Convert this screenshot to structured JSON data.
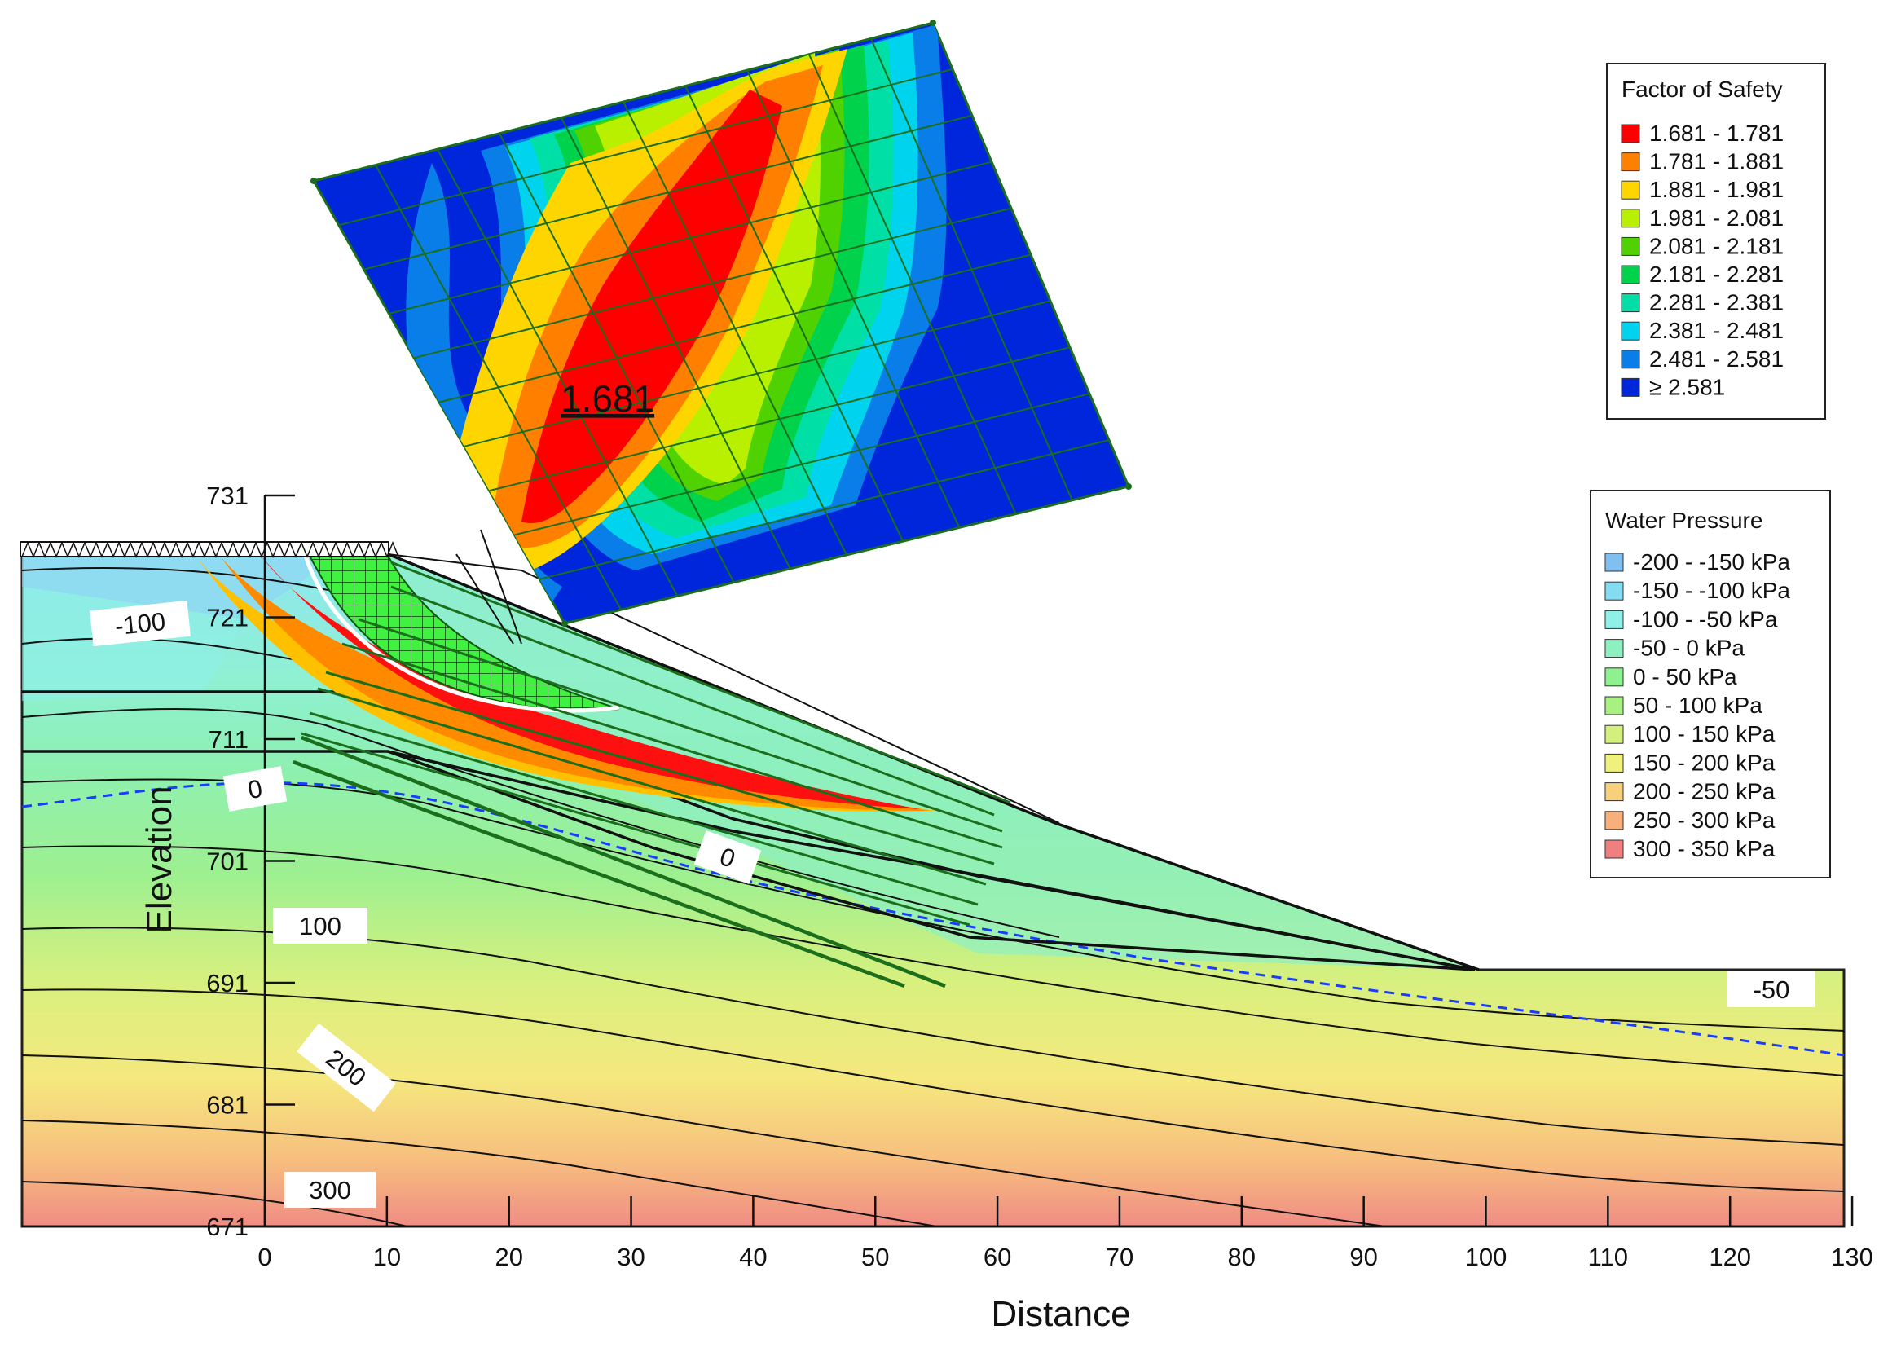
{
  "axes": {
    "x_title": "Distance",
    "y_title": "Elevation",
    "x_ticks": [
      "0",
      "10",
      "20",
      "30",
      "40",
      "50",
      "60",
      "70",
      "80",
      "90",
      "100",
      "110",
      "120",
      "130"
    ],
    "y_ticks": [
      "731",
      "721",
      "711",
      "701",
      "691",
      "681",
      "671"
    ]
  },
  "fos_legend": {
    "title": "Factor of Safety",
    "items": [
      {
        "label": "1.681 - 1.781",
        "color": "#ff0000"
      },
      {
        "label": "1.781 - 1.881",
        "color": "#ff7f00"
      },
      {
        "label": "1.881 - 1.981",
        "color": "#ffd500"
      },
      {
        "label": "1.981 - 2.081",
        "color": "#b9f000"
      },
      {
        "label": "2.081 - 2.181",
        "color": "#4fd200"
      },
      {
        "label": "2.181 - 2.281",
        "color": "#00d24c"
      },
      {
        "label": "2.281 - 2.381",
        "color": "#00e0a6"
      },
      {
        "label": "2.381 - 2.481",
        "color": "#00d3ee"
      },
      {
        "label": "2.481 - 2.581",
        "color": "#0a7ee8"
      },
      {
        "label": "≥ 2.581",
        "color": "#0026dc"
      }
    ]
  },
  "water_legend": {
    "title": "Water Pressure",
    "items": [
      {
        "label": "-200 - -150 kPa",
        "color": "#7fc0f0"
      },
      {
        "label": "-150 - -100 kPa",
        "color": "#83dcf2"
      },
      {
        "label": "-100 - -50 kPa",
        "color": "#8ef0e6"
      },
      {
        "label": "-50 - 0 kPa",
        "color": "#8ef0c0"
      },
      {
        "label": "0 - 50 kPa",
        "color": "#8ef08e"
      },
      {
        "label": "50 - 100 kPa",
        "color": "#a8f080"
      },
      {
        "label": "100 - 150 kPa",
        "color": "#d4f07c"
      },
      {
        "label": "150 - 200 kPa",
        "color": "#f0f07c"
      },
      {
        "label": "200 - 250 kPa",
        "color": "#f7d07c"
      },
      {
        "label": "250 - 300 kPa",
        "color": "#f7b07c"
      },
      {
        "label": "300 - 350 kPa",
        "color": "#f08080"
      }
    ]
  },
  "contour_labels": [
    "-100",
    "0",
    "0",
    "100",
    "200",
    "300",
    "-50"
  ],
  "minimum_fos": "1.681"
}
